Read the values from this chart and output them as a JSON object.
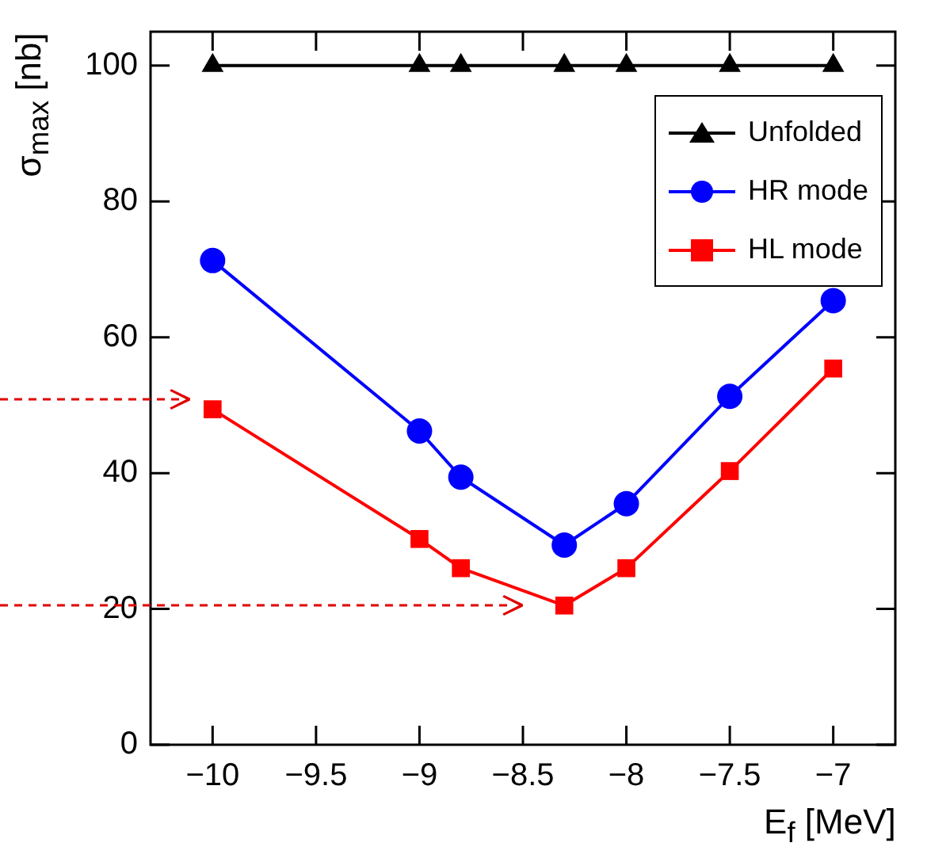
{
  "chart_data": {
    "type": "line",
    "xlabel": "E$_{f}$ [MeV]",
    "ylabel": "σ$_{max}$ [nb]",
    "xlim": [
      -10.3,
      -6.7
    ],
    "xticks": [
      -10,
      -9.5,
      -9,
      -8.5,
      -8,
      -7.5,
      -7
    ],
    "ylim": [
      0,
      105
    ],
    "yticks": [
      0,
      20,
      40,
      60,
      80,
      100
    ],
    "legend": "top right",
    "grid": false,
    "series": [
      {
        "name": "Unfolded",
        "color": "#000000",
        "marker": "triangle",
        "x": [
          -10,
          -9,
          -8.8,
          -8.3,
          -8,
          -7.5,
          -7
        ],
        "values": [
          100,
          100,
          100,
          100,
          100,
          100,
          100
        ]
      },
      {
        "name": "HR mode",
        "color": "#0000ff",
        "marker": "circle",
        "x": [
          -10,
          -9,
          -8.8,
          -8.3,
          -8,
          -7.5,
          -7
        ],
        "values": [
          71.3,
          46.2,
          39.4,
          29.4,
          35.5,
          51.3,
          65.4
        ]
      },
      {
        "name": "HL mode",
        "color": "#ff0000",
        "marker": "square",
        "x": [
          -10,
          -9,
          -8.8,
          -8.3,
          -8,
          -7.5,
          -7
        ],
        "values": [
          49.4,
          30.3,
          26,
          20.5,
          26,
          40.3,
          55.4
        ]
      }
    ]
  }
}
